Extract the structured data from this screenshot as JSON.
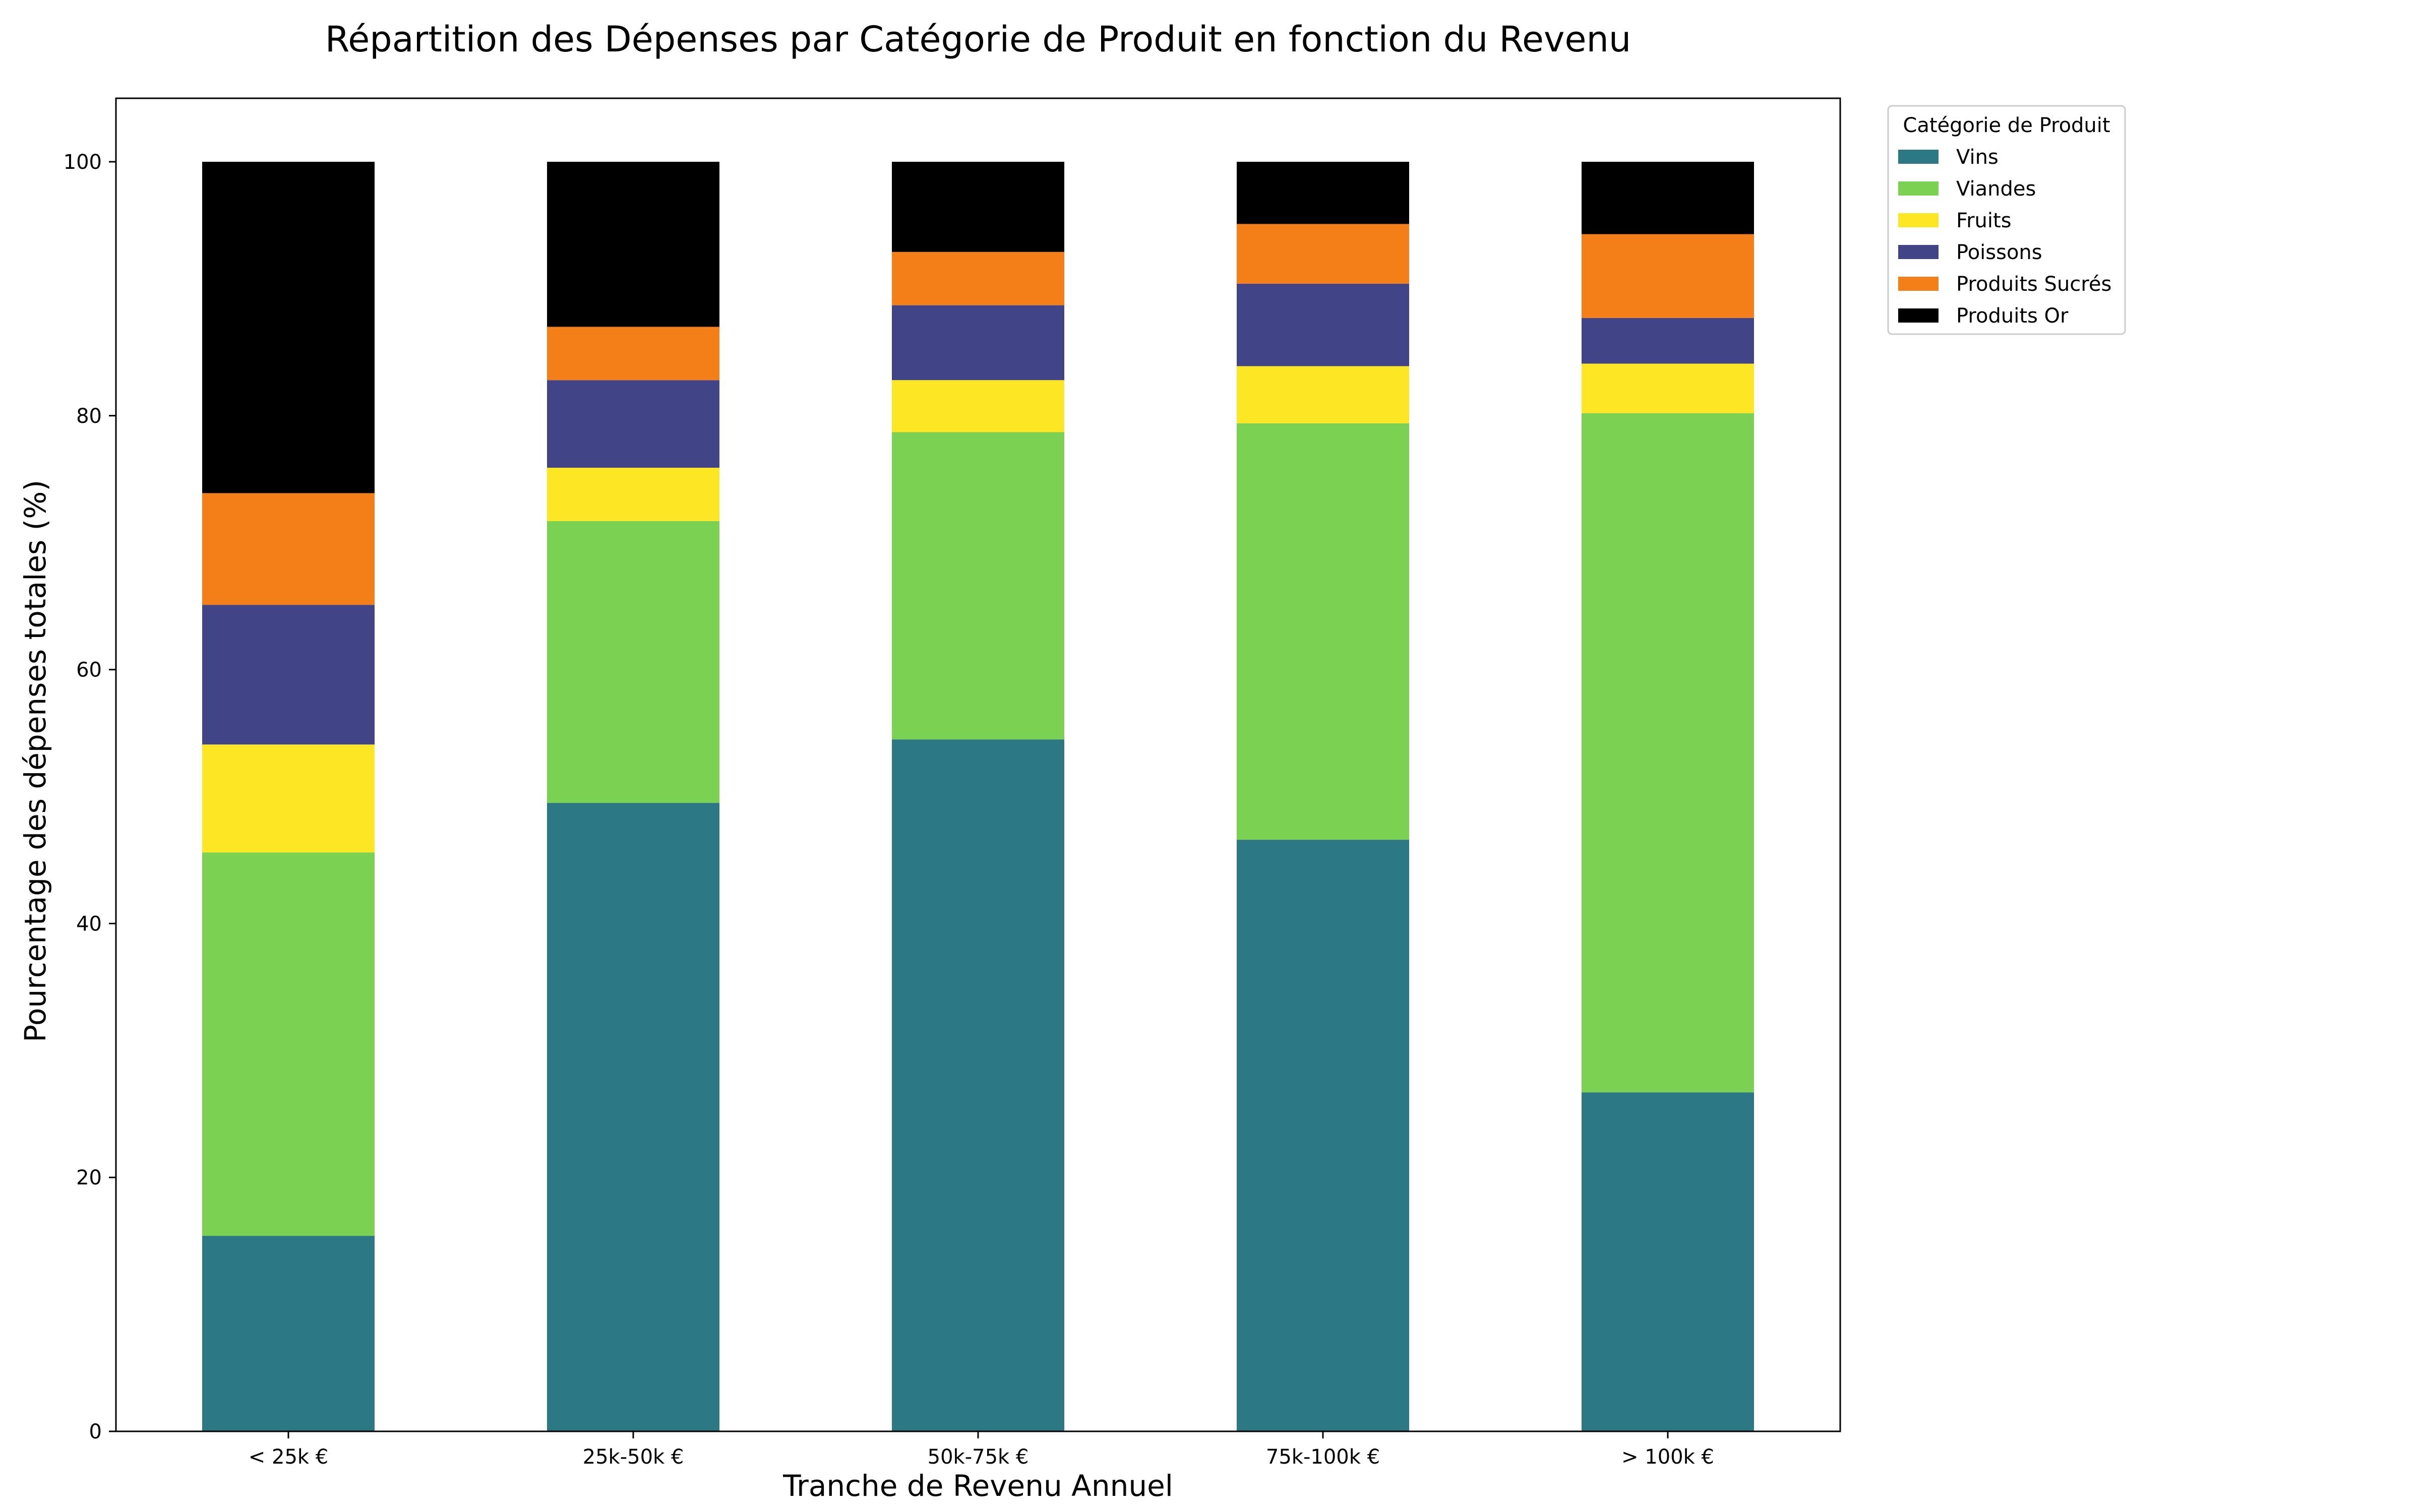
{
  "chart_data": {
    "type": "bar",
    "stacked": true,
    "title": "Répartition des Dépenses par Catégorie de Produit en fonction du Revenu",
    "xlabel": "Tranche de Revenu Annuel",
    "ylabel": "Pourcentage des dépenses totales (%)",
    "ylim": [
      0,
      105
    ],
    "yticks": [
      0,
      20,
      40,
      60,
      80,
      100
    ],
    "grid": false,
    "legend_position": "outside-top-right",
    "legend_title": "Catégorie de Produit",
    "categories": [
      "< 25k €",
      "25k-50k €",
      "50k-75k €",
      "75k-100k €",
      "> 100k €"
    ],
    "series": [
      {
        "name": "Vins",
        "color": "#2c7885",
        "values": [
          15.4,
          49.5,
          54.5,
          46.6,
          26.7
        ]
      },
      {
        "name": "Viandes",
        "color": "#7bd151",
        "values": [
          30.2,
          22.2,
          24.2,
          32.8,
          53.5
        ]
      },
      {
        "name": "Fruits",
        "color": "#fde725",
        "values": [
          8.5,
          4.2,
          4.1,
          4.5,
          3.9
        ]
      },
      {
        "name": "Poissons",
        "color": "#414487",
        "values": [
          11.0,
          6.9,
          5.9,
          6.5,
          3.6
        ]
      },
      {
        "name": "Produits Sucrés",
        "color": "#f47e17",
        "values": [
          8.8,
          4.2,
          4.2,
          4.7,
          6.6
        ]
      },
      {
        "name": "Produits Or",
        "color": "#000000",
        "values": [
          26.1,
          13.0,
          7.1,
          4.9,
          5.7
        ]
      }
    ]
  }
}
